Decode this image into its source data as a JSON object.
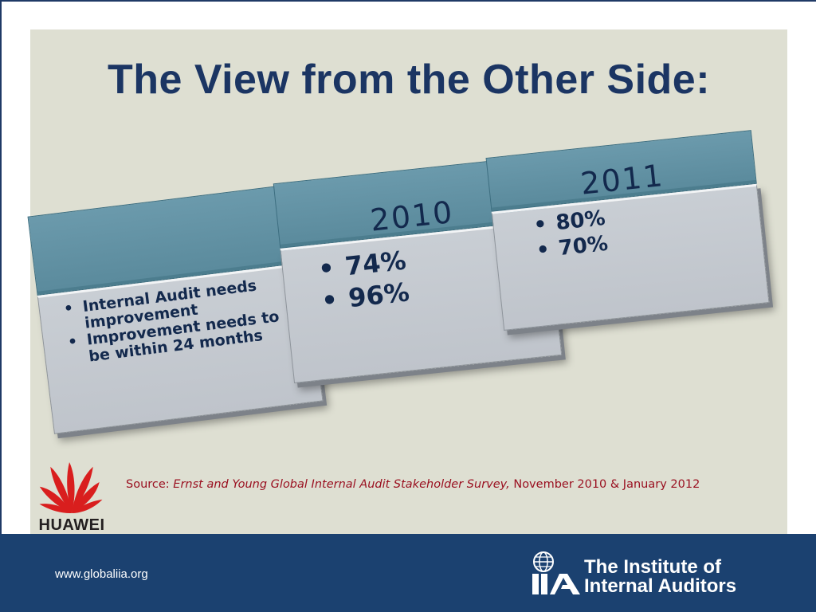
{
  "slide": {
    "title": "The View from the Other Side:"
  },
  "cards": [
    {
      "year": "",
      "bullets": [
        "Internal Audit needs improvement",
        "Improvement needs to be within 24 months"
      ]
    },
    {
      "year": "2010",
      "bullets": [
        "74%",
        "96%"
      ]
    },
    {
      "year": "2011",
      "bullets": [
        "80%",
        "70%"
      ]
    }
  ],
  "source": {
    "prefix": "Source: ",
    "publication": "Ernst and Young Global Internal Audit Stakeholder Survey,",
    "dates": " November 2010 & January 2012"
  },
  "logos": {
    "huawei": "HUAWEI",
    "iia_line1": "The Institute of",
    "iia_line2": "Internal Auditors"
  },
  "footer": {
    "url": "www.globaliia.org"
  },
  "colors": {
    "title": "#1b3563",
    "panel_background": "#dedfd2",
    "card_header": "#5a8a9c",
    "card_body": "#c4c9cf",
    "source_text": "#9a1020",
    "footer_band": "#1b4170",
    "huawei_red": "#d91e1e"
  },
  "icons": {
    "bullet": "•",
    "huawei_logo": "huawei-petals-icon",
    "iia_logo": "iia-globe-icon"
  }
}
